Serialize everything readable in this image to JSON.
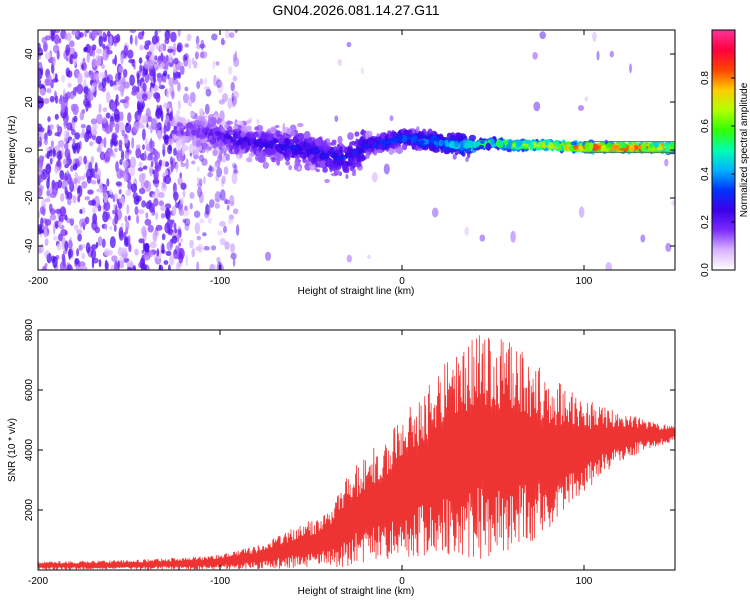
{
  "figure": {
    "title": "GN04.2026.081.14.27.G11"
  },
  "chart_data": [
    {
      "type": "heatmap",
      "xlabel": "Height of straight line (km)",
      "ylabel": "Frequency (Hz)",
      "xlim": [
        -200,
        150
      ],
      "ylim": [
        -50,
        50
      ],
      "xticks": [
        -200,
        -100,
        0,
        100
      ],
      "yticks": [
        -40,
        -20,
        0,
        20,
        40
      ],
      "colorbar": {
        "label": "Normalized spectral amplitude",
        "range": [
          0,
          1
        ],
        "ticks": [
          0.0,
          0.2,
          0.4,
          0.6,
          0.8
        ],
        "tick_labels": [
          "0.0",
          "0.2",
          "0.4",
          "0.6",
          "0.8"
        ],
        "colormap": [
          "#ffffff",
          "#d9b3ff",
          "#7a2bff",
          "#3b00e6",
          "#0033ff",
          "#00b3ff",
          "#00ffb0",
          "#33ff00",
          "#b3ff00",
          "#ffcc00",
          "#ff4400",
          "#ff0040",
          "#ff3399"
        ]
      },
      "ridge_frequency": [
        {
          "x": -110,
          "y": 8
        },
        {
          "x": -100,
          "y": 6
        },
        {
          "x": -90,
          "y": 4
        },
        {
          "x": -80,
          "y": 3
        },
        {
          "x": -70,
          "y": 2
        },
        {
          "x": -60,
          "y": 1
        },
        {
          "x": -50,
          "y": 0
        },
        {
          "x": -40,
          "y": -3
        },
        {
          "x": -30,
          "y": -4
        },
        {
          "x": -20,
          "y": 2
        },
        {
          "x": -10,
          "y": 3
        },
        {
          "x": 0,
          "y": 5
        },
        {
          "x": 10,
          "y": 4
        },
        {
          "x": 20,
          "y": 3
        },
        {
          "x": 30,
          "y": 2
        },
        {
          "x": 40,
          "y": 2
        },
        {
          "x": 50,
          "y": 3
        },
        {
          "x": 60,
          "y": 2
        },
        {
          "x": 70,
          "y": 2
        },
        {
          "x": 80,
          "y": 2
        },
        {
          "x": 100,
          "y": 1
        },
        {
          "x": 120,
          "y": 1
        },
        {
          "x": 140,
          "y": 1
        },
        {
          "x": 150,
          "y": 1
        }
      ],
      "amplitude_trend": [
        {
          "x": -200,
          "a": 0.15
        },
        {
          "x": -120,
          "a": 0.2
        },
        {
          "x": -100,
          "a": 0.25
        },
        {
          "x": -70,
          "a": 0.3
        },
        {
          "x": -30,
          "a": 0.33
        },
        {
          "x": 0,
          "a": 0.38
        },
        {
          "x": 30,
          "a": 0.5
        },
        {
          "x": 60,
          "a": 0.7
        },
        {
          "x": 90,
          "a": 0.86
        },
        {
          "x": 120,
          "a": 0.9
        },
        {
          "x": 150,
          "a": 0.9
        }
      ]
    },
    {
      "type": "line",
      "xlabel": "Height of straight line (km)",
      "ylabel": "SNR (10 * v/v)",
      "xlim": [
        -200,
        150
      ],
      "ylim": [
        0,
        8000
      ],
      "xticks": [
        -200,
        -100,
        0,
        100
      ],
      "yticks": [
        2000,
        4000,
        6000,
        8000
      ],
      "series": [
        {
          "name": "SNR",
          "color": "#ee3333",
          "envelope_max": [
            {
              "x": -200,
              "y": 280
            },
            {
              "x": -150,
              "y": 320
            },
            {
              "x": -120,
              "y": 420
            },
            {
              "x": -100,
              "y": 500
            },
            {
              "x": -80,
              "y": 800
            },
            {
              "x": -60,
              "y": 1400
            },
            {
              "x": -40,
              "y": 1900
            },
            {
              "x": -30,
              "y": 3200
            },
            {
              "x": -20,
              "y": 3800
            },
            {
              "x": -10,
              "y": 4400
            },
            {
              "x": 0,
              "y": 5200
            },
            {
              "x": 10,
              "y": 5800
            },
            {
              "x": 20,
              "y": 6800
            },
            {
              "x": 30,
              "y": 7200
            },
            {
              "x": 40,
              "y": 7900
            },
            {
              "x": 50,
              "y": 7700
            },
            {
              "x": 60,
              "y": 7700
            },
            {
              "x": 70,
              "y": 7100
            },
            {
              "x": 80,
              "y": 6500
            },
            {
              "x": 90,
              "y": 6100
            },
            {
              "x": 100,
              "y": 5700
            },
            {
              "x": 110,
              "y": 5500
            },
            {
              "x": 120,
              "y": 5200
            },
            {
              "x": 130,
              "y": 5100
            },
            {
              "x": 140,
              "y": 4900
            },
            {
              "x": 150,
              "y": 4900
            }
          ],
          "envelope_min": [
            {
              "x": -200,
              "y": 20
            },
            {
              "x": -150,
              "y": 20
            },
            {
              "x": -120,
              "y": 20
            },
            {
              "x": -100,
              "y": 30
            },
            {
              "x": -80,
              "y": 40
            },
            {
              "x": -60,
              "y": 60
            },
            {
              "x": -40,
              "y": 80
            },
            {
              "x": -30,
              "y": 120
            },
            {
              "x": -20,
              "y": 200
            },
            {
              "x": -10,
              "y": 300
            },
            {
              "x": 0,
              "y": 400
            },
            {
              "x": 10,
              "y": 400
            },
            {
              "x": 20,
              "y": 400
            },
            {
              "x": 30,
              "y": 500
            },
            {
              "x": 40,
              "y": 300
            },
            {
              "x": 50,
              "y": 300
            },
            {
              "x": 60,
              "y": 500
            },
            {
              "x": 70,
              "y": 900
            },
            {
              "x": 80,
              "y": 1300
            },
            {
              "x": 90,
              "y": 1900
            },
            {
              "x": 100,
              "y": 2500
            },
            {
              "x": 110,
              "y": 3100
            },
            {
              "x": 120,
              "y": 3600
            },
            {
              "x": 130,
              "y": 3900
            },
            {
              "x": 140,
              "y": 4100
            },
            {
              "x": 150,
              "y": 4300
            }
          ]
        }
      ]
    }
  ]
}
